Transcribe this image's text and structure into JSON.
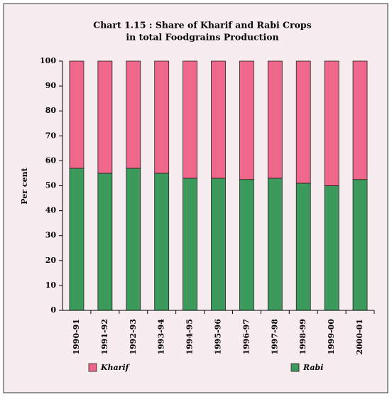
{
  "chart_data": {
    "type": "bar",
    "stacked": true,
    "title": [
      "Chart 1.15 : Share of Kharif and Rabi Crops",
      "in total Foodgrains Production"
    ],
    "ylabel": "Per cent",
    "categories": [
      "1990-91",
      "1991-92",
      "1992-93",
      "1993-94",
      "1994-95",
      "1995-96",
      "1996-97",
      "1997-98",
      "1998-99",
      "1999-00",
      "2000-01"
    ],
    "series": [
      {
        "name": "Kharif",
        "color": "#f0678c",
        "values": [
          43,
          45,
          43,
          45,
          47,
          47,
          47.5,
          47,
          49,
          50,
          47.5
        ]
      },
      {
        "name": "Rabi",
        "color": "#3c9a5c",
        "values": [
          57,
          55,
          57,
          55,
          53,
          53,
          52.5,
          53,
          51,
          50,
          52.5
        ]
      }
    ],
    "ylim": [
      0,
      100
    ],
    "yticks": [
      0,
      10,
      20,
      30,
      40,
      50,
      60,
      70,
      80,
      90,
      100
    ],
    "grid": false
  }
}
